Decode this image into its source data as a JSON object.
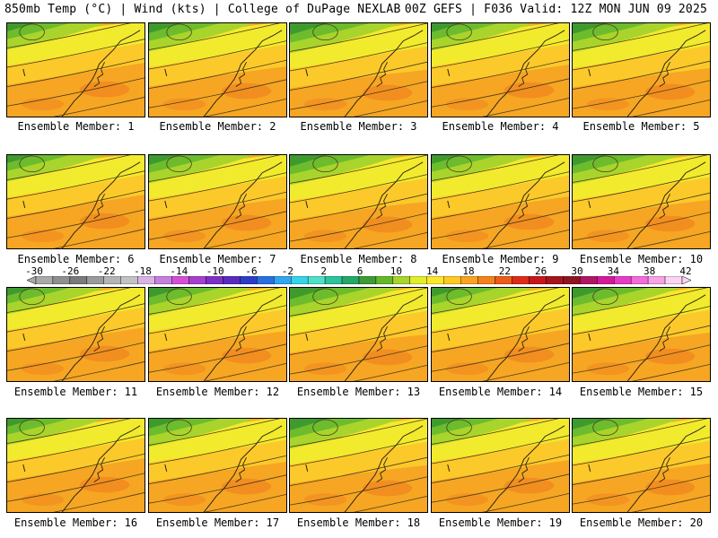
{
  "header": {
    "left": "850mb Temp (°C) | Wind (kts) | College of DuPage NEXLAB",
    "right": "00Z GEFS | F036 Valid: 12Z MON JUN 09 2025"
  },
  "colorbar": {
    "ticks": [
      "-30",
      "-26",
      "-22",
      "-18",
      "-14",
      "-10",
      "-6",
      "-2",
      "2",
      "6",
      "10",
      "14",
      "18",
      "22",
      "26",
      "30",
      "34",
      "38",
      "42"
    ],
    "colors": [
      "#a9a9a9",
      "#8f8f8f",
      "#7a7a7a",
      "#9a9a9a",
      "#b4b4b4",
      "#c2c2c2",
      "#d9b3e6",
      "#c77ee0",
      "#d44fd8",
      "#a83ed0",
      "#7d2fc8",
      "#5a2bbf",
      "#2e3bc6",
      "#2a6fe0",
      "#31a5f0",
      "#35d4ea",
      "#4fe0c8",
      "#2cc49a",
      "#23a86a",
      "#3c9b35",
      "#66b82b",
      "#a8d42c",
      "#e3ee2a",
      "#fde72a",
      "#ffc924",
      "#fba21f",
      "#f6811c",
      "#ee5a1a",
      "#e02a18",
      "#c8161a",
      "#a8141b",
      "#8e1421",
      "#b01664",
      "#d21a9a",
      "#e83bc6",
      "#f36ad8",
      "#f7a3e6",
      "#fbd3f3"
    ]
  },
  "members": [
    {
      "label": "Ensemble Member: 1"
    },
    {
      "label": "Ensemble Member: 2"
    },
    {
      "label": "Ensemble Member: 3"
    },
    {
      "label": "Ensemble Member: 4"
    },
    {
      "label": "Ensemble Member: 5"
    },
    {
      "label": "Ensemble Member: 6"
    },
    {
      "label": "Ensemble Member: 7"
    },
    {
      "label": "Ensemble Member: 8"
    },
    {
      "label": "Ensemble Member: 9"
    },
    {
      "label": "Ensemble Member: 10"
    },
    {
      "label": "Ensemble Member: 11"
    },
    {
      "label": "Ensemble Member: 12"
    },
    {
      "label": "Ensemble Member: 13"
    },
    {
      "label": "Ensemble Member: 14"
    },
    {
      "label": "Ensemble Member: 15"
    },
    {
      "label": "Ensemble Member: 16"
    },
    {
      "label": "Ensemble Member: 17"
    },
    {
      "label": "Ensemble Member: 18"
    },
    {
      "label": "Ensemble Member: 19"
    },
    {
      "label": "Ensemble Member: 20"
    }
  ],
  "map_colors": {
    "warm": "#f6a623",
    "mild": "#fcc92a",
    "cool_yellow": "#f2ea2d",
    "green_light": "#a9d42c",
    "green": "#6cbc2d",
    "green_dark": "#3f9a2d",
    "hot": "#f1891f",
    "line": "#4a3a1a"
  }
}
